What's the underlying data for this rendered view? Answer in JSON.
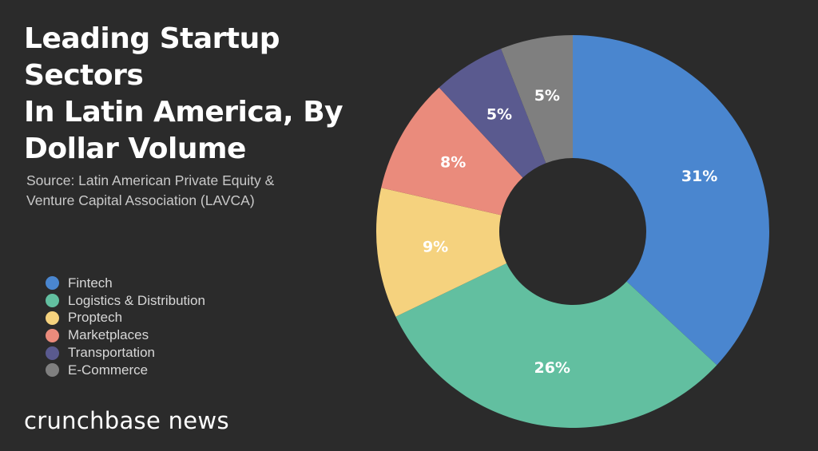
{
  "chart_data": {
    "type": "pie",
    "variant": "donut",
    "title": "Leading Startup Sectors In Latin America, By Dollar Volume",
    "title_lines": [
      "Leading Startup Sectors",
      "In Latin America, By",
      "Dollar Volume"
    ],
    "source_lines": [
      "Source: Latin American Private Equity &",
      "Venture Capital Association (LAVCA)"
    ],
    "legend_position": "left",
    "slices": [
      {
        "name": "Fintech",
        "value": 31,
        "label": "31%",
        "color": "#4a86cf"
      },
      {
        "name": "Logistics & Distribution",
        "value": 26,
        "label": "26%",
        "color": "#62bfa0"
      },
      {
        "name": "Proptech",
        "value": 9,
        "label": "9%",
        "color": "#f5d27e"
      },
      {
        "name": "Marketplaces",
        "value": 8,
        "label": "8%",
        "color": "#ea8b7c"
      },
      {
        "name": "Transportation",
        "value": 5,
        "label": "5%",
        "color": "#5a5a8f"
      },
      {
        "name": "E-Commerce",
        "value": 5,
        "label": "5%",
        "color": "#7f7f7f"
      }
    ]
  },
  "brand": "crunchbase news"
}
